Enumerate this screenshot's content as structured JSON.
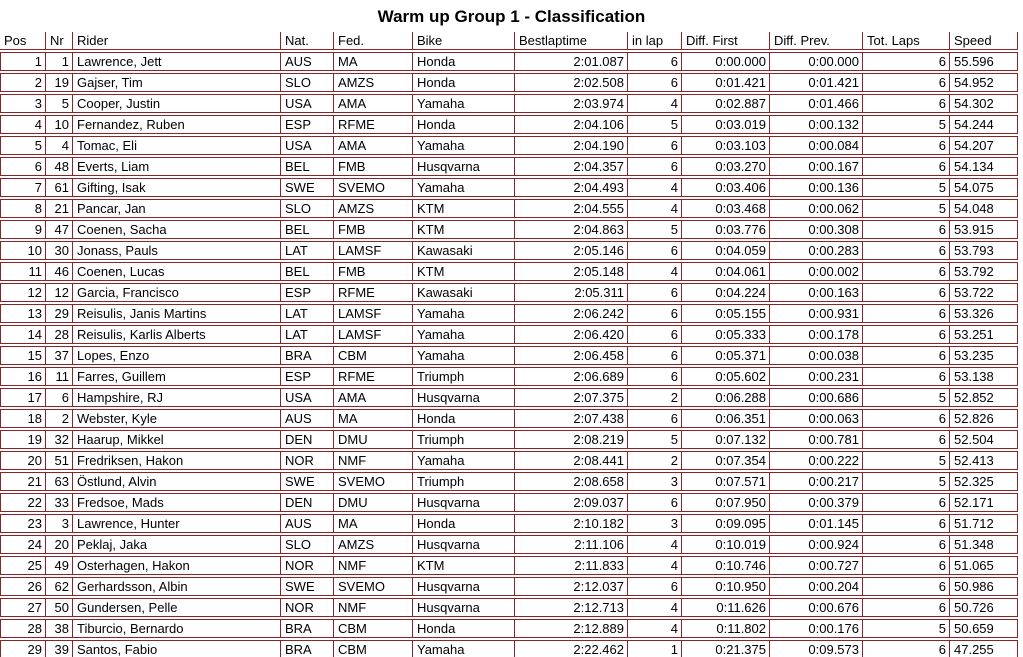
{
  "title": "Warm up Group 1 - Classification",
  "colors": {
    "border": "#8b2424",
    "text": "#000000",
    "background": "#ffffff"
  },
  "table": {
    "columns": [
      {
        "key": "pos",
        "label": "Pos"
      },
      {
        "key": "nr",
        "label": "Nr"
      },
      {
        "key": "rider",
        "label": "Rider"
      },
      {
        "key": "nat",
        "label": "Nat."
      },
      {
        "key": "fed",
        "label": "Fed."
      },
      {
        "key": "bike",
        "label": "Bike"
      },
      {
        "key": "bestlaptime",
        "label": "Bestlaptime"
      },
      {
        "key": "in_lap",
        "label": "in lap"
      },
      {
        "key": "diff_first",
        "label": "Diff. First"
      },
      {
        "key": "diff_prev",
        "label": "Diff. Prev."
      },
      {
        "key": "tot_laps",
        "label": "Tot. Laps"
      },
      {
        "key": "speed",
        "label": "Speed"
      }
    ],
    "rows": [
      [
        1,
        1,
        "Lawrence, Jett",
        "AUS",
        "MA",
        "Honda",
        "2:01.087",
        6,
        "0:00.000",
        "0:00.000",
        6,
        "55.596"
      ],
      [
        2,
        19,
        "Gajser, Tim",
        "SLO",
        "AMZS",
        "Honda",
        "2:02.508",
        6,
        "0:01.421",
        "0:01.421",
        6,
        "54.952"
      ],
      [
        3,
        5,
        "Cooper, Justin",
        "USA",
        "AMA",
        "Yamaha",
        "2:03.974",
        4,
        "0:02.887",
        "0:01.466",
        6,
        "54.302"
      ],
      [
        4,
        10,
        "Fernandez, Ruben",
        "ESP",
        "RFME",
        "Honda",
        "2:04.106",
        5,
        "0:03.019",
        "0:00.132",
        5,
        "54.244"
      ],
      [
        5,
        4,
        "Tomac, Eli",
        "USA",
        "AMA",
        "Yamaha",
        "2:04.190",
        6,
        "0:03.103",
        "0:00.084",
        6,
        "54.207"
      ],
      [
        6,
        48,
        "Everts, Liam",
        "BEL",
        "FMB",
        "Husqvarna",
        "2:04.357",
        6,
        "0:03.270",
        "0:00.167",
        6,
        "54.134"
      ],
      [
        7,
        61,
        "Gifting, Isak",
        "SWE",
        "SVEMO",
        "Yamaha",
        "2:04.493",
        4,
        "0:03.406",
        "0:00.136",
        5,
        "54.075"
      ],
      [
        8,
        21,
        "Pancar, Jan",
        "SLO",
        "AMZS",
        "KTM",
        "2:04.555",
        4,
        "0:03.468",
        "0:00.062",
        5,
        "54.048"
      ],
      [
        9,
        47,
        "Coenen, Sacha",
        "BEL",
        "FMB",
        "KTM",
        "2:04.863",
        5,
        "0:03.776",
        "0:00.308",
        6,
        "53.915"
      ],
      [
        10,
        30,
        "Jonass, Pauls",
        "LAT",
        "LAMSF",
        "Kawasaki",
        "2:05.146",
        6,
        "0:04.059",
        "0:00.283",
        6,
        "53.793"
      ],
      [
        11,
        46,
        "Coenen, Lucas",
        "BEL",
        "FMB",
        "KTM",
        "2:05.148",
        4,
        "0:04.061",
        "0:00.002",
        6,
        "53.792"
      ],
      [
        12,
        12,
        "Garcia, Francisco",
        "ESP",
        "RFME",
        "Kawasaki",
        "2:05.311",
        6,
        "0:04.224",
        "0:00.163",
        6,
        "53.722"
      ],
      [
        13,
        29,
        "Reisulis, Janis Martins",
        "LAT",
        "LAMSF",
        "Yamaha",
        "2:06.242",
        6,
        "0:05.155",
        "0:00.931",
        6,
        "53.326"
      ],
      [
        14,
        28,
        "Reisulis, Karlis Alberts",
        "LAT",
        "LAMSF",
        "Yamaha",
        "2:06.420",
        6,
        "0:05.333",
        "0:00.178",
        6,
        "53.251"
      ],
      [
        15,
        37,
        "Lopes, Enzo",
        "BRA",
        "CBM",
        "Yamaha",
        "2:06.458",
        6,
        "0:05.371",
        "0:00.038",
        6,
        "53.235"
      ],
      [
        16,
        11,
        "Farres, Guillem",
        "ESP",
        "RFME",
        "Triumph",
        "2:06.689",
        6,
        "0:05.602",
        "0:00.231",
        6,
        "53.138"
      ],
      [
        17,
        6,
        "Hampshire, RJ",
        "USA",
        "AMA",
        "Husqvarna",
        "2:07.375",
        2,
        "0:06.288",
        "0:00.686",
        5,
        "52.852"
      ],
      [
        18,
        2,
        "Webster, Kyle",
        "AUS",
        "MA",
        "Honda",
        "2:07.438",
        6,
        "0:06.351",
        "0:00.063",
        6,
        "52.826"
      ],
      [
        19,
        32,
        "Haarup, Mikkel",
        "DEN",
        "DMU",
        "Triumph",
        "2:08.219",
        5,
        "0:07.132",
        "0:00.781",
        6,
        "52.504"
      ],
      [
        20,
        51,
        "Fredriksen, Hakon",
        "NOR",
        "NMF",
        "Yamaha",
        "2:08.441",
        2,
        "0:07.354",
        "0:00.222",
        5,
        "52.413"
      ],
      [
        21,
        63,
        "Östlund, Alvin",
        "SWE",
        "SVEMO",
        "Triumph",
        "2:08.658",
        3,
        "0:07.571",
        "0:00.217",
        5,
        "52.325"
      ],
      [
        22,
        33,
        "Fredsoe, Mads",
        "DEN",
        "DMU",
        "Husqvarna",
        "2:09.037",
        6,
        "0:07.950",
        "0:00.379",
        6,
        "52.171"
      ],
      [
        23,
        3,
        "Lawrence, Hunter",
        "AUS",
        "MA",
        "Honda",
        "2:10.182",
        3,
        "0:09.095",
        "0:01.145",
        6,
        "51.712"
      ],
      [
        24,
        20,
        "Peklaj, Jaka",
        "SLO",
        "AMZS",
        "Husqvarna",
        "2:11.106",
        4,
        "0:10.019",
        "0:00.924",
        6,
        "51.348"
      ],
      [
        25,
        49,
        "Osterhagen, Hakon",
        "NOR",
        "NMF",
        "KTM",
        "2:11.833",
        4,
        "0:10.746",
        "0:00.727",
        6,
        "51.065"
      ],
      [
        26,
        62,
        "Gerhardsson, Albin",
        "SWE",
        "SVEMO",
        "Husqvarna",
        "2:12.037",
        6,
        "0:10.950",
        "0:00.204",
        6,
        "50.986"
      ],
      [
        27,
        50,
        "Gundersen, Pelle",
        "NOR",
        "NMF",
        "Husqvarna",
        "2:12.713",
        4,
        "0:11.626",
        "0:00.676",
        6,
        "50.726"
      ],
      [
        28,
        38,
        "Tiburcio, Bernardo",
        "BRA",
        "CBM",
        "Honda",
        "2:12.889",
        4,
        "0:11.802",
        "0:00.176",
        5,
        "50.659"
      ],
      [
        29,
        39,
        "Santos, Fabio",
        "BRA",
        "CBM",
        "Yamaha",
        "2:22.462",
        1,
        "0:21.375",
        "0:09.573",
        6,
        "47.255"
      ]
    ]
  }
}
